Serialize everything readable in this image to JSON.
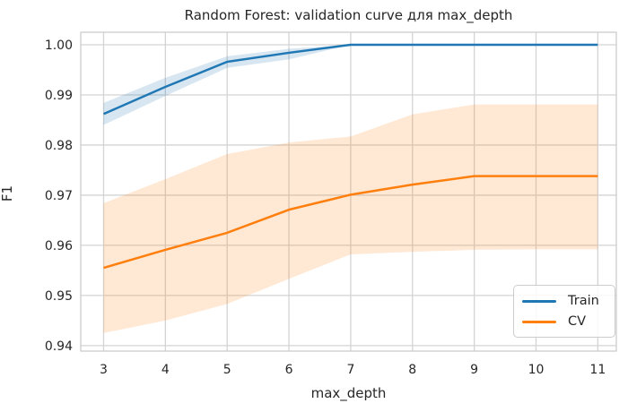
{
  "title": "Random Forest: validation curve для max_depth",
  "colors": {
    "train": "#1f77b4",
    "cv": "#ff7f0e",
    "train_band": "rgba(31,119,180,0.18)",
    "cv_band": "rgba(255,127,14,0.18)",
    "grid": "#d4d4d4",
    "spine": "#cccccc",
    "text": "#262626",
    "background": "#ffffff"
  },
  "legend": {
    "position": "lower right",
    "items": [
      {
        "label": "Train",
        "color": "#1f77b4"
      },
      {
        "label": "CV",
        "color": "#ff7f0e"
      }
    ]
  },
  "chart_data": {
    "type": "line",
    "title": "Random Forest: validation curve для max_depth",
    "xlabel": "max_depth",
    "ylabel": "F1",
    "grid": true,
    "x": [
      3,
      4,
      5,
      6,
      7,
      8,
      9,
      10,
      11
    ],
    "xticks": [
      3,
      4,
      5,
      6,
      7,
      8,
      9,
      10,
      11
    ],
    "xtick_labels": [
      "3",
      "4",
      "5",
      "6",
      "7",
      "8",
      "9",
      "10",
      "11"
    ],
    "yticks": [
      0.94,
      0.95,
      0.96,
      0.97,
      0.98,
      0.99,
      1.0
    ],
    "ytick_labels": [
      "0.94",
      "0.95",
      "0.96",
      "0.97",
      "0.98",
      "0.99",
      "1.00"
    ],
    "xlim": [
      2.63,
      11.3
    ],
    "ylim": [
      0.9389,
      1.0025
    ],
    "legend_position": "lower right",
    "series": [
      {
        "name": "Train",
        "color": "#1f77b4",
        "values": [
          0.9862,
          0.9916,
          0.9966,
          0.9984,
          1.0,
          1.0,
          1.0,
          1.0,
          1.0
        ],
        "band_low": [
          0.984,
          0.9898,
          0.9954,
          0.9971,
          1.0,
          1.0,
          1.0,
          1.0,
          1.0
        ],
        "band_high": [
          0.9884,
          0.9934,
          0.9977,
          0.9992,
          1.0,
          1.0,
          1.0,
          1.0,
          1.0
        ]
      },
      {
        "name": "CV",
        "color": "#ff7f0e",
        "values": [
          0.9555,
          0.9591,
          0.9625,
          0.9671,
          0.9701,
          0.9721,
          0.9738,
          0.9738,
          0.9738
        ],
        "band_low": [
          0.9425,
          0.945,
          0.9483,
          0.9533,
          0.9582,
          0.9587,
          0.9591,
          0.9592,
          0.9592
        ],
        "band_high": [
          0.9684,
          0.9732,
          0.9782,
          0.9805,
          0.9817,
          0.9861,
          0.9881,
          0.9881,
          0.9881
        ]
      }
    ]
  }
}
